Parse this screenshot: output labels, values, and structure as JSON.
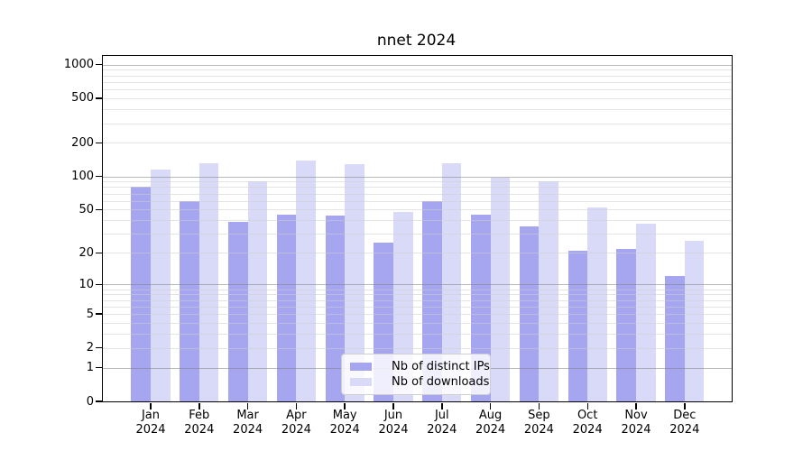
{
  "title": "nnet 2024",
  "chart_data": {
    "type": "bar",
    "title": "nnet 2024",
    "categories": [
      "Jan",
      "Feb",
      "Mar",
      "Apr",
      "May",
      "Jun",
      "Jul",
      "Aug",
      "Sep",
      "Oct",
      "Nov",
      "Dec"
    ],
    "x_tick_year": "2024",
    "series": [
      {
        "name": "Nb of distinct IPs",
        "color": "#a5a5f0",
        "values": [
          80,
          60,
          39,
          45,
          44,
          25,
          60,
          45,
          35,
          21,
          22,
          12
        ]
      },
      {
        "name": "Nb of downloads",
        "color": "#d9d9f8",
        "values": [
          115,
          130,
          90,
          140,
          128,
          48,
          131,
          97,
          90,
          52,
          37,
          26
        ]
      }
    ],
    "xlabel": "",
    "ylabel": "",
    "y_scale": "log10(1+value)",
    "y_ticks": [
      0,
      1,
      2,
      5,
      10,
      20,
      50,
      100,
      200,
      500,
      1000
    ],
    "ylim": [
      0,
      1192
    ],
    "grid": "horizontal major (1,10,100,1000) and minor (2-9 per decade)",
    "legend_position": "inside bottom center"
  },
  "legend": {
    "items": [
      {
        "label": "Nb of distinct IPs",
        "color": "#a5a5f0"
      },
      {
        "label": "Nb of downloads",
        "color": "#d9d9f8"
      }
    ]
  },
  "styles": {
    "major_grid_color": "#9a9a9a",
    "minor_grid_color": "#dcdcdc",
    "axis_color": "#000000",
    "background": "#ffffff"
  }
}
